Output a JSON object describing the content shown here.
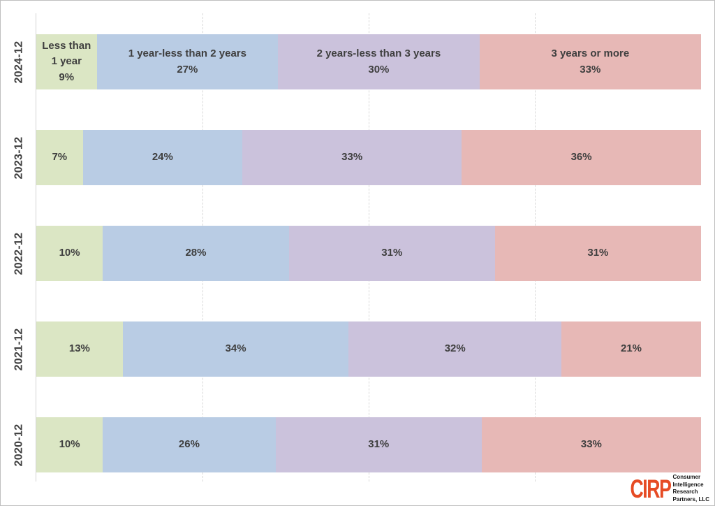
{
  "chart_data": {
    "type": "bar",
    "orientation": "horizontal",
    "stacked": true,
    "title": "",
    "xlabel": "",
    "ylabel": "",
    "xlim": [
      0,
      100
    ],
    "value_suffix": "%",
    "gridlines_percent": [
      25,
      50,
      75
    ],
    "grid_style": "dashed-vertical",
    "legend_position": "none (series names shown inside first row segments)",
    "categories": [
      "2024-12",
      "2023-12",
      "2022-12",
      "2021-12",
      "2020-12"
    ],
    "series": [
      {
        "name": "Less than 1 year",
        "color": "#dbe6c4",
        "values": [
          9,
          7,
          10,
          13,
          10
        ]
      },
      {
        "name": "1 year-less than 2 years",
        "color": "#b9cce4",
        "values": [
          27,
          24,
          28,
          34,
          26
        ]
      },
      {
        "name": "2 years-less than 3 years",
        "color": "#cbc2dc",
        "values": [
          30,
          33,
          31,
          32,
          31
        ]
      },
      {
        "name": "3 years or more",
        "color": "#e7b8b6",
        "values": [
          33,
          36,
          31,
          21,
          33
        ]
      }
    ],
    "label_text_color": "#3f3f3f",
    "series_names_shown_on_first_row_only": true
  },
  "branding": {
    "logo_text": "CIRP",
    "logo_color": "#e64b24",
    "logo_caption_lines": [
      "Consumer",
      "Intelligence",
      "Research",
      "Partners, LLC"
    ]
  }
}
